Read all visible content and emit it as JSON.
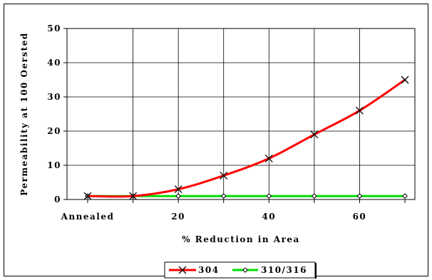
{
  "chart_data": {
    "type": "line",
    "xlabel": "% Reduction in Area",
    "ylabel": "Permeability at 100 Oersted",
    "x_range": [
      0,
      70
    ],
    "ylim": [
      0,
      50
    ],
    "grid": true,
    "legend_position": "bottom-right",
    "x_tick_labels": [
      {
        "x": 0,
        "label": "Annealed"
      },
      {
        "x": 20,
        "label": "20"
      },
      {
        "x": 40,
        "label": "40"
      },
      {
        "x": 60,
        "label": "60"
      }
    ],
    "y_tick_labels": [
      {
        "y": 0,
        "label": "0"
      },
      {
        "y": 10,
        "label": "10"
      },
      {
        "y": 20,
        "label": "20"
      },
      {
        "y": 30,
        "label": "30"
      },
      {
        "y": 40,
        "label": "40"
      },
      {
        "y": 50,
        "label": "50"
      }
    ],
    "series": [
      {
        "name": "304",
        "color": "#ff0000",
        "marker": "x",
        "x": [
          0,
          10,
          20,
          30,
          40,
          50,
          60,
          70
        ],
        "y": [
          1,
          1,
          3,
          7,
          12,
          19,
          26,
          35
        ]
      },
      {
        "name": "310/316",
        "color": "#00e000",
        "marker": "diamond",
        "x": [
          0,
          10,
          20,
          30,
          40,
          50,
          60,
          70
        ],
        "y": [
          1,
          1,
          1,
          1,
          1,
          1,
          1,
          1
        ]
      }
    ]
  }
}
